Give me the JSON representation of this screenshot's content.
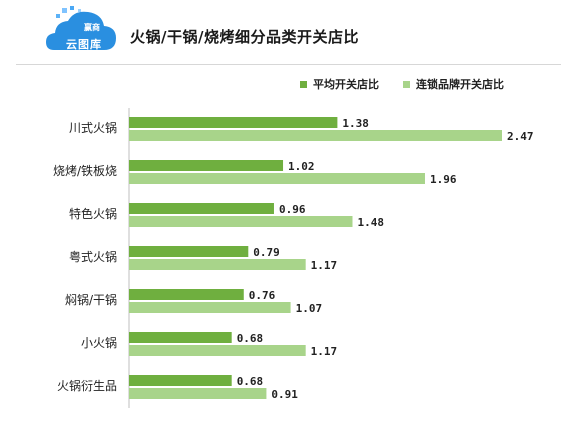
{
  "header": {
    "title": "火锅/干锅/烧烤细分品类开关店比",
    "logo_line1": "赢商",
    "logo_line2": "云图库"
  },
  "colors": {
    "series1": "#6faf3f",
    "series2": "#a8d48a"
  },
  "chart_data": {
    "type": "bar",
    "orientation": "horizontal",
    "title": "火锅/干锅/烧烤细分品类开关店比",
    "categories": [
      "川式火锅",
      "烧烤/铁板烧",
      "特色火锅",
      "粤式火锅",
      "焖锅/干锅",
      "小火锅",
      "火锅衍生品"
    ],
    "series": [
      {
        "name": "平均开关店比",
        "values": [
          1.38,
          1.02,
          0.96,
          0.79,
          0.76,
          0.68,
          0.68
        ],
        "labels": [
          "1.38",
          "1.02",
          "0.96",
          "0.79",
          "0.76",
          "0.68",
          "0.68"
        ]
      },
      {
        "name": "连锁品牌开关店比",
        "values": [
          2.47,
          1.96,
          1.48,
          1.17,
          1.07,
          1.17,
          0.91
        ],
        "labels": [
          "2.47",
          "1.96",
          "1.48",
          "1.17",
          "1.07",
          "1.17",
          "0.91"
        ]
      }
    ],
    "xlim": [
      0,
      2.5
    ],
    "legend_position": "top-right",
    "grid": false
  }
}
